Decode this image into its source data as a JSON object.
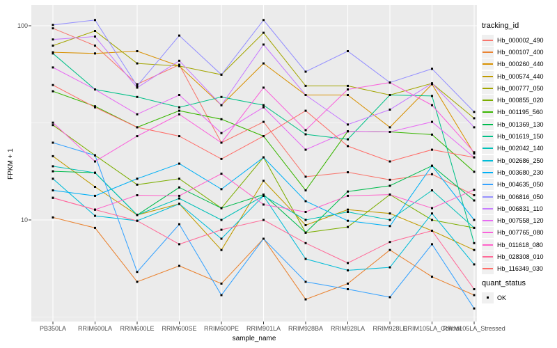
{
  "chart_data": {
    "type": "line",
    "title": "",
    "xlabel": "sample_name",
    "ylabel": "FPKM + 1",
    "y_scale": "log10",
    "y_ticks": [
      "100",
      "10"
    ],
    "y_tick_values": [
      100,
      10
    ],
    "y_minor_values": [
      31.623,
      3.1623
    ],
    "ylim": [
      3.0,
      128
    ],
    "grid": "on",
    "legend_position": "right",
    "categories": [
      "PB350LA",
      "RRIM600LA",
      "RRIM600LE",
      "RRIM600SE",
      "RRIM600PE",
      "RRIM901LA",
      "RRIM928BA",
      "RRIM928LA",
      "RRIM928LE",
      "RRIM105LA_Control",
      "RRIM105LA_Stressed"
    ],
    "series_legend_title": "tracking_id",
    "series": [
      {
        "name": "Hb_000002_490",
        "color": "#F8766D",
        "values": [
          97,
          79,
          50,
          63,
          25,
          32,
          16.7,
          17.6,
          16.1,
          17.2,
          13.4
        ]
      },
      {
        "name": "Hb_000107_400",
        "color": "#EA8331",
        "values": [
          10.3,
          9.1,
          4.8,
          5.8,
          4.7,
          8.0,
          3.9,
          4.7,
          7.0,
          5.1,
          4.1
        ]
      },
      {
        "name": "Hb_000260_440",
        "color": "#D89000",
        "values": [
          73,
          72,
          74,
          62,
          39,
          64,
          44,
          44,
          30,
          50,
          22
        ]
      },
      {
        "name": "Hb_000574_440",
        "color": "#C09B00",
        "values": [
          21.3,
          14.8,
          10.6,
          12.1,
          7.0,
          15.9,
          9.4,
          11.3,
          10.8,
          8.8,
          7.0
        ]
      },
      {
        "name": "Hb_000777_050",
        "color": "#A3A500",
        "values": [
          79,
          94,
          64,
          62,
          56,
          92,
          49,
          49,
          44,
          50.5,
          33.4
        ]
      },
      {
        "name": "Hb_000855_020",
        "color": "#7CAE00",
        "values": [
          30.8,
          21.5,
          15.2,
          16.3,
          11.5,
          21,
          8.6,
          9.2,
          13.5,
          10,
          9.1
        ]
      },
      {
        "name": "Hb_001195_560",
        "color": "#39B600",
        "values": [
          46,
          38.5,
          30,
          36.5,
          33,
          27,
          14.2,
          28.6,
          28.4,
          27.5,
          17.7
        ]
      },
      {
        "name": "Hb_001369_130",
        "color": "#00BB4E",
        "values": [
          17.8,
          17.5,
          10.6,
          14.7,
          11.5,
          13.5,
          8.6,
          14,
          15,
          19,
          12.6
        ]
      },
      {
        "name": "Hb_001619_150",
        "color": "#00C087",
        "values": [
          72,
          47,
          43,
          38,
          43,
          39,
          27.6,
          26,
          44,
          43.5,
          7.6
        ]
      },
      {
        "name": "Hb_002042_140",
        "color": "#00C0B8",
        "values": [
          18.9,
          17.5,
          10.6,
          12.9,
          10,
          13.3,
          10,
          11,
          10,
          14.2,
          9.1
        ]
      },
      {
        "name": "Hb_002686_250",
        "color": "#00BCD8",
        "values": [
          16.3,
          10.5,
          9.9,
          12.1,
          8.0,
          13.3,
          6.3,
          5.5,
          5.7,
          10.8,
          5.9
        ]
      },
      {
        "name": "Hb_003680_230",
        "color": "#00B0F6",
        "values": [
          14.2,
          13.3,
          16.3,
          19.5,
          14.4,
          21,
          12.5,
          9.9,
          9.3,
          19,
          10
        ]
      },
      {
        "name": "Hb_004635_050",
        "color": "#35A2FF",
        "values": [
          25,
          21.5,
          5.4,
          9.5,
          4.1,
          8.0,
          4.8,
          4.4,
          4.0,
          7.5,
          3.5
        ]
      },
      {
        "name": "Hb_006816_050",
        "color": "#9590FF",
        "values": [
          101,
          107,
          49,
          89,
          56,
          107,
          58,
          74,
          51,
          60,
          36
        ]
      },
      {
        "name": "Hb_006831_110",
        "color": "#C77CFF",
        "values": [
          85,
          88,
          48,
          66,
          39,
          80,
          44,
          31,
          37,
          50.5,
          30
        ]
      },
      {
        "name": "Hb_007558_120",
        "color": "#E76BF3",
        "values": [
          61,
          47,
          35,
          44,
          28,
          38,
          23,
          28.6,
          28.4,
          32,
          21
        ]
      },
      {
        "name": "Hb_007765_080",
        "color": "#FA62DB",
        "values": [
          31.7,
          20,
          27,
          35,
          25,
          48,
          29,
          47,
          51,
          39,
          22.3
        ]
      },
      {
        "name": "Hb_011618_080",
        "color": "#FF61C9",
        "values": [
          13,
          11.3,
          13.4,
          13.3,
          17.3,
          12,
          11,
          13.3,
          13.5,
          11.5,
          14.3
        ]
      },
      {
        "name": "Hb_028308_010",
        "color": "#FF6A98",
        "values": [
          13,
          11.3,
          9.9,
          7.5,
          8.9,
          10,
          7.6,
          6.0,
          7.7,
          8.8,
          4.4
        ]
      },
      {
        "name": "Hb_116349_030",
        "color": "#FF6C67",
        "values": [
          49.5,
          38,
          30,
          27,
          20.6,
          27,
          36.5,
          24,
          20,
          23,
          21
        ]
      }
    ],
    "quant_legend_title": "quant_status",
    "quant_legend_label": "OK",
    "point_marker": "black-square"
  },
  "colors": {
    "panel_background": "#EBEBEB",
    "gridline": "#FFFFFF",
    "point": "#000000",
    "tick_label": "#4D4D4D",
    "tick_mark": "#333333",
    "legend_key_background": "#F0F0F0"
  }
}
